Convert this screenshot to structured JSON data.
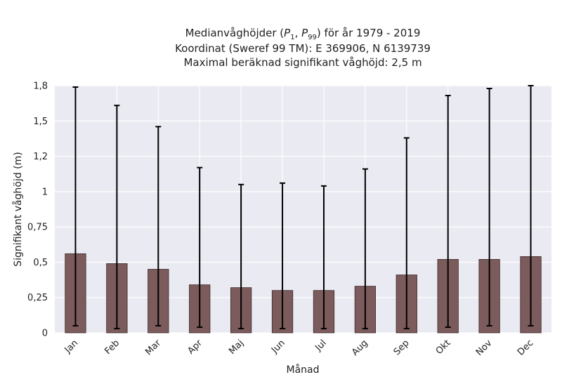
{
  "chart_data": {
    "type": "bar",
    "title_lines": [
      "Medianvåghöjder (P1, P99) för år 1979 - 2019",
      "Koordinat (Sweref 99 TM): E 369906, N 6139739",
      "Maximal beräknad signifikant våghöjd: 2,5 m"
    ],
    "title_math": {
      "prefix": "Medianvåghöjder (",
      "sym1": "P",
      "sub1": "1",
      "sep": ", ",
      "sym2": "P",
      "sub2": "99",
      "suffix": ") för år 1979 - 2019"
    },
    "xlabel": "Månad",
    "ylabel": "Signifikant våghöjd (m)",
    "categories": [
      "Jan",
      "Feb",
      "Mar",
      "Apr",
      "Maj",
      "Jun",
      "Jul",
      "Aug",
      "Sep",
      "Okt",
      "Nov",
      "Dec"
    ],
    "values": [
      0.56,
      0.49,
      0.45,
      0.34,
      0.32,
      0.3,
      0.3,
      0.33,
      0.41,
      0.52,
      0.52,
      0.54
    ],
    "error_low": [
      0.05,
      0.03,
      0.05,
      0.04,
      0.03,
      0.03,
      0.03,
      0.03,
      0.03,
      0.04,
      0.05,
      0.05
    ],
    "error_high": [
      1.74,
      1.61,
      1.46,
      1.17,
      1.05,
      1.06,
      1.04,
      1.16,
      1.38,
      1.68,
      1.73,
      1.75
    ],
    "ylim": [
      0,
      1.75
    ],
    "yticks": [
      0,
      0.25,
      0.5,
      0.75,
      1,
      1.25,
      1.5,
      1.75
    ],
    "ytick_labels": [
      "0",
      "0,25",
      "0,5",
      "0,75",
      "1",
      "1,2",
      "1,5",
      "1,8"
    ],
    "grid": true,
    "colors": {
      "bar": "#7b5b5b",
      "bar_edge": "#3e2a2a",
      "error": "#000000",
      "plot_bg": "#eaeaf2",
      "grid": "#ffffff"
    }
  }
}
